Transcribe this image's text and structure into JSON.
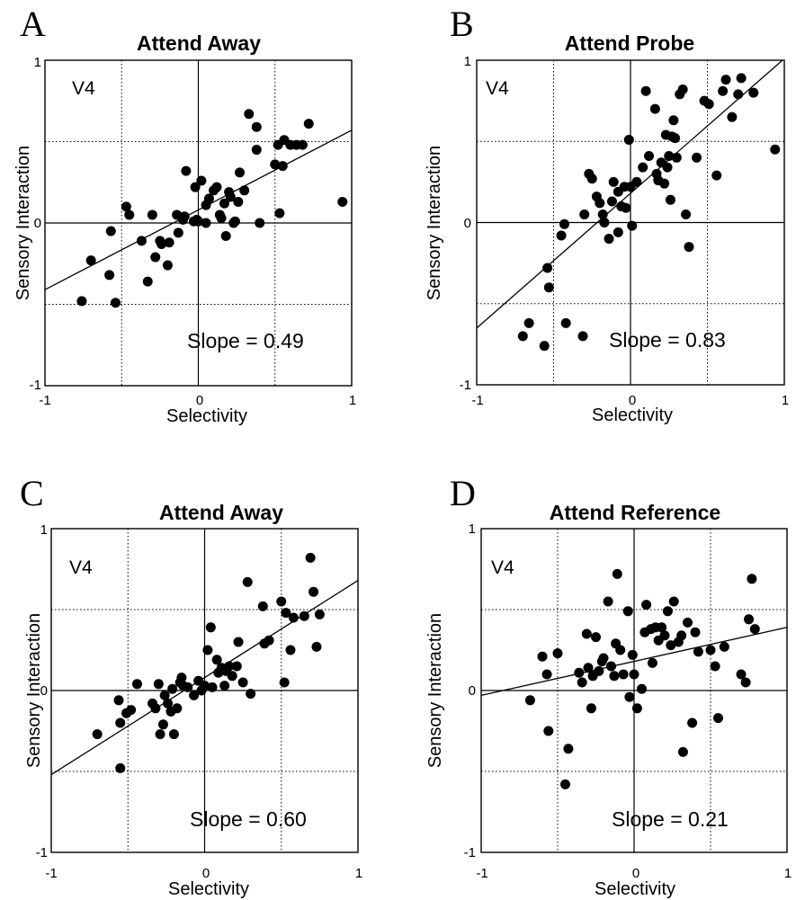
{
  "chart_data": [
    {
      "type": "scatter",
      "panel_label": "A",
      "title": "Attend Away",
      "xlabel": "Selectivity",
      "ylabel": "Sensory Interaction",
      "region_label": "V4",
      "slope_text": "Slope = 0.49",
      "xlim": [
        -1,
        1
      ],
      "ylim": [
        -1,
        1
      ],
      "x_ticks": [
        "-1",
        "0",
        "1"
      ],
      "y_ticks": [
        "-1",
        "0",
        "1"
      ],
      "grid": true,
      "fit_line": {
        "slope": 0.49,
        "intercept": 0.08
      },
      "x": [
        -0.76,
        -0.7,
        -0.58,
        -0.57,
        -0.54,
        -0.47,
        -0.45,
        -0.37,
        -0.33,
        -0.3,
        -0.28,
        -0.25,
        -0.24,
        -0.2,
        -0.19,
        -0.14,
        -0.13,
        -0.1,
        -0.09,
        -0.08,
        -0.03,
        -0.02,
        -0.01,
        0.0,
        0.02,
        0.05,
        0.05,
        0.07,
        0.1,
        0.12,
        0.14,
        0.15,
        0.17,
        0.18,
        0.2,
        0.21,
        0.23,
        0.24,
        0.26,
        0.27,
        0.3,
        0.33,
        0.38,
        0.38,
        0.4,
        0.5,
        0.52,
        0.53,
        0.55,
        0.56,
        0.6,
        0.64,
        0.68,
        0.72,
        0.94
      ],
      "y": [
        -0.48,
        -0.23,
        -0.32,
        -0.05,
        -0.49,
        0.1,
        0.05,
        -0.11,
        -0.36,
        0.05,
        -0.21,
        -0.11,
        -0.13,
        -0.26,
        -0.12,
        0.05,
        -0.06,
        0.02,
        0.04,
        0.32,
        0.01,
        0.22,
        0.02,
        0.01,
        0.26,
        0.11,
        0.0,
        0.15,
        0.2,
        0.22,
        0.05,
        0.03,
        0.12,
        -0.08,
        0.19,
        0.16,
        0.0,
        0.01,
        0.13,
        0.31,
        0.2,
        0.67,
        0.45,
        0.59,
        0.0,
        0.36,
        0.48,
        0.06,
        0.35,
        0.51,
        0.48,
        0.48,
        0.48,
        0.61,
        0.13
      ]
    },
    {
      "type": "scatter",
      "panel_label": "B",
      "title": "Attend Probe",
      "xlabel": "Selectivity",
      "ylabel": "Sensory Interaction",
      "region_label": "V4",
      "slope_text": "Slope = 0.83",
      "xlim": [
        -1,
        1
      ],
      "ylim": [
        -1,
        1
      ],
      "x_ticks": [
        "-1",
        "0",
        "1"
      ],
      "y_ticks": [
        "-1",
        "0",
        "1"
      ],
      "grid": true,
      "fit_line": {
        "slope": 0.83,
        "intercept": 0.18
      },
      "x": [
        -0.7,
        -0.66,
        -0.56,
        -0.54,
        -0.53,
        -0.45,
        -0.43,
        -0.42,
        -0.31,
        -0.3,
        -0.27,
        -0.25,
        -0.22,
        -0.2,
        -0.18,
        -0.17,
        -0.14,
        -0.12,
        -0.11,
        -0.08,
        -0.08,
        -0.06,
        -0.04,
        -0.03,
        -0.01,
        0.0,
        0.01,
        0.04,
        0.08,
        0.1,
        0.12,
        0.16,
        0.17,
        0.18,
        0.2,
        0.22,
        0.23,
        0.24,
        0.25,
        0.26,
        0.27,
        0.28,
        0.29,
        0.3,
        0.32,
        0.34,
        0.36,
        0.38,
        0.43,
        0.48,
        0.51,
        0.56,
        0.6,
        0.62,
        0.66,
        0.7,
        0.72,
        0.8,
        0.94
      ],
      "y": [
        -0.7,
        -0.62,
        -0.76,
        -0.28,
        -0.4,
        -0.08,
        -0.01,
        -0.62,
        -0.7,
        0.05,
        0.3,
        0.27,
        0.16,
        0.12,
        0.05,
        0.0,
        -0.1,
        0.13,
        0.25,
        -0.06,
        0.19,
        0.1,
        0.22,
        0.09,
        0.51,
        0.22,
        -0.02,
        0.25,
        0.34,
        0.81,
        0.41,
        0.7,
        0.3,
        0.26,
        0.37,
        0.24,
        0.54,
        0.34,
        0.41,
        0.14,
        0.53,
        0.63,
        0.52,
        0.4,
        0.79,
        0.82,
        0.05,
        -0.15,
        0.4,
        0.75,
        0.73,
        0.29,
        0.81,
        0.88,
        0.65,
        0.79,
        0.89,
        0.8,
        0.45
      ]
    },
    {
      "type": "scatter",
      "panel_label": "C",
      "title": "Attend Away",
      "xlabel": "Selectivity",
      "ylabel": "Sensory Interaction",
      "region_label": "V4",
      "slope_text": "Slope = 0.60",
      "xlim": [
        -1,
        1
      ],
      "ylim": [
        -1,
        1
      ],
      "x_ticks": [
        "-1",
        "0",
        "1"
      ],
      "y_ticks": [
        "-1",
        "0",
        "1"
      ],
      "grid": true,
      "fit_line": {
        "slope": 0.6,
        "intercept": 0.08
      },
      "x": [
        -0.7,
        -0.56,
        -0.55,
        -0.55,
        -0.51,
        -0.48,
        -0.44,
        -0.34,
        -0.32,
        -0.3,
        -0.29,
        -0.27,
        -0.26,
        -0.24,
        -0.22,
        -0.21,
        -0.2,
        -0.18,
        -0.16,
        -0.15,
        -0.14,
        -0.11,
        -0.07,
        -0.04,
        -0.02,
        0.0,
        0.02,
        0.04,
        0.05,
        0.08,
        0.09,
        0.11,
        0.13,
        0.14,
        0.16,
        0.18,
        0.21,
        0.22,
        0.25,
        0.28,
        0.3,
        0.38,
        0.39,
        0.42,
        0.5,
        0.52,
        0.53,
        0.56,
        0.58,
        0.65,
        0.69,
        0.71,
        0.73,
        0.75
      ],
      "y": [
        -0.27,
        -0.06,
        -0.2,
        -0.48,
        -0.14,
        -0.12,
        0.04,
        -0.08,
        -0.11,
        0.04,
        -0.27,
        -0.21,
        -0.03,
        -0.08,
        -0.13,
        0.01,
        -0.27,
        -0.11,
        0.05,
        0.08,
        0.03,
        0.02,
        -0.03,
        0.06,
        0.0,
        0.03,
        0.25,
        0.39,
        0.02,
        0.19,
        0.11,
        0.14,
        0.03,
        0.12,
        0.15,
        0.09,
        0.15,
        0.3,
        0.05,
        0.67,
        -0.02,
        0.52,
        0.29,
        0.31,
        0.55,
        0.05,
        0.48,
        0.25,
        0.45,
        0.46,
        0.82,
        0.61,
        0.27,
        0.47
      ]
    },
    {
      "type": "scatter",
      "panel_label": "D",
      "title": "Attend Reference",
      "xlabel": "Selectivity",
      "ylabel": "Sensory Interaction",
      "region_label": "V4",
      "slope_text": "Slope = 0.21",
      "xlim": [
        -1,
        1
      ],
      "ylim": [
        -1,
        1
      ],
      "x_ticks": [
        "-1",
        "0",
        "1"
      ],
      "y_ticks": [
        "-1",
        "0",
        "1"
      ],
      "grid": true,
      "fit_line": {
        "slope": 0.21,
        "intercept": 0.18
      },
      "x": [
        -0.68,
        -0.6,
        -0.57,
        -0.56,
        -0.5,
        -0.45,
        -0.43,
        -0.36,
        -0.34,
        -0.31,
        -0.3,
        -0.28,
        -0.27,
        -0.25,
        -0.23,
        -0.21,
        -0.2,
        -0.17,
        -0.15,
        -0.13,
        -0.12,
        -0.11,
        -0.09,
        -0.07,
        -0.04,
        -0.03,
        -0.01,
        0.0,
        0.02,
        0.05,
        0.07,
        0.08,
        0.11,
        0.12,
        0.14,
        0.16,
        0.18,
        0.2,
        0.22,
        0.24,
        0.26,
        0.29,
        0.31,
        0.32,
        0.35,
        0.38,
        0.4,
        0.42,
        0.5,
        0.53,
        0.55,
        0.59,
        0.7,
        0.73,
        0.75,
        0.77,
        0.79
      ],
      "y": [
        -0.06,
        0.21,
        0.1,
        -0.25,
        0.23,
        -0.58,
        -0.36,
        0.11,
        0.05,
        0.35,
        0.14,
        -0.11,
        0.09,
        0.33,
        0.12,
        0.18,
        0.2,
        0.55,
        0.15,
        0.09,
        0.29,
        0.72,
        0.25,
        0.1,
        0.49,
        -0.04,
        0.22,
        0.1,
        -0.11,
        0.01,
        0.36,
        0.53,
        0.38,
        0.17,
        0.39,
        0.31,
        0.39,
        0.34,
        0.49,
        0.28,
        0.55,
        0.3,
        0.34,
        -0.38,
        0.42,
        -0.2,
        0.36,
        0.24,
        0.25,
        0.15,
        -0.17,
        0.27,
        0.1,
        0.05,
        0.44,
        0.69,
        0.38
      ]
    }
  ]
}
